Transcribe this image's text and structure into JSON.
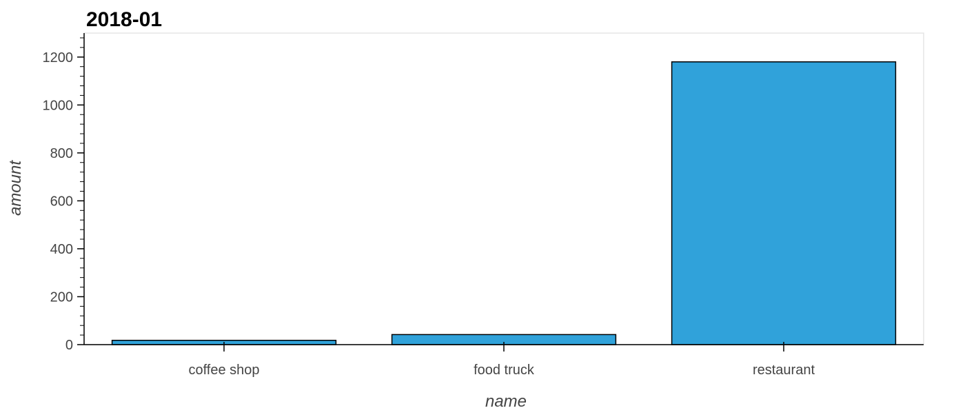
{
  "chart_data": {
    "type": "bar",
    "title": "2018-01",
    "xlabel": "name",
    "ylabel": "amount",
    "categories": [
      "coffee shop",
      "food truck",
      "restaurant"
    ],
    "values": [
      18,
      42,
      1180
    ],
    "ylim": [
      0,
      1300
    ],
    "yticks": [
      0,
      200,
      400,
      600,
      800,
      1000,
      1200
    ],
    "ytick_labels": [
      "0",
      "200",
      "400",
      "600",
      "800",
      "1000",
      "1200"
    ],
    "grid": false,
    "legend": "none",
    "colors": {
      "bar_fill": "#30a2da",
      "bar_stroke": "#000000",
      "frame": "#e5e5e5"
    }
  }
}
